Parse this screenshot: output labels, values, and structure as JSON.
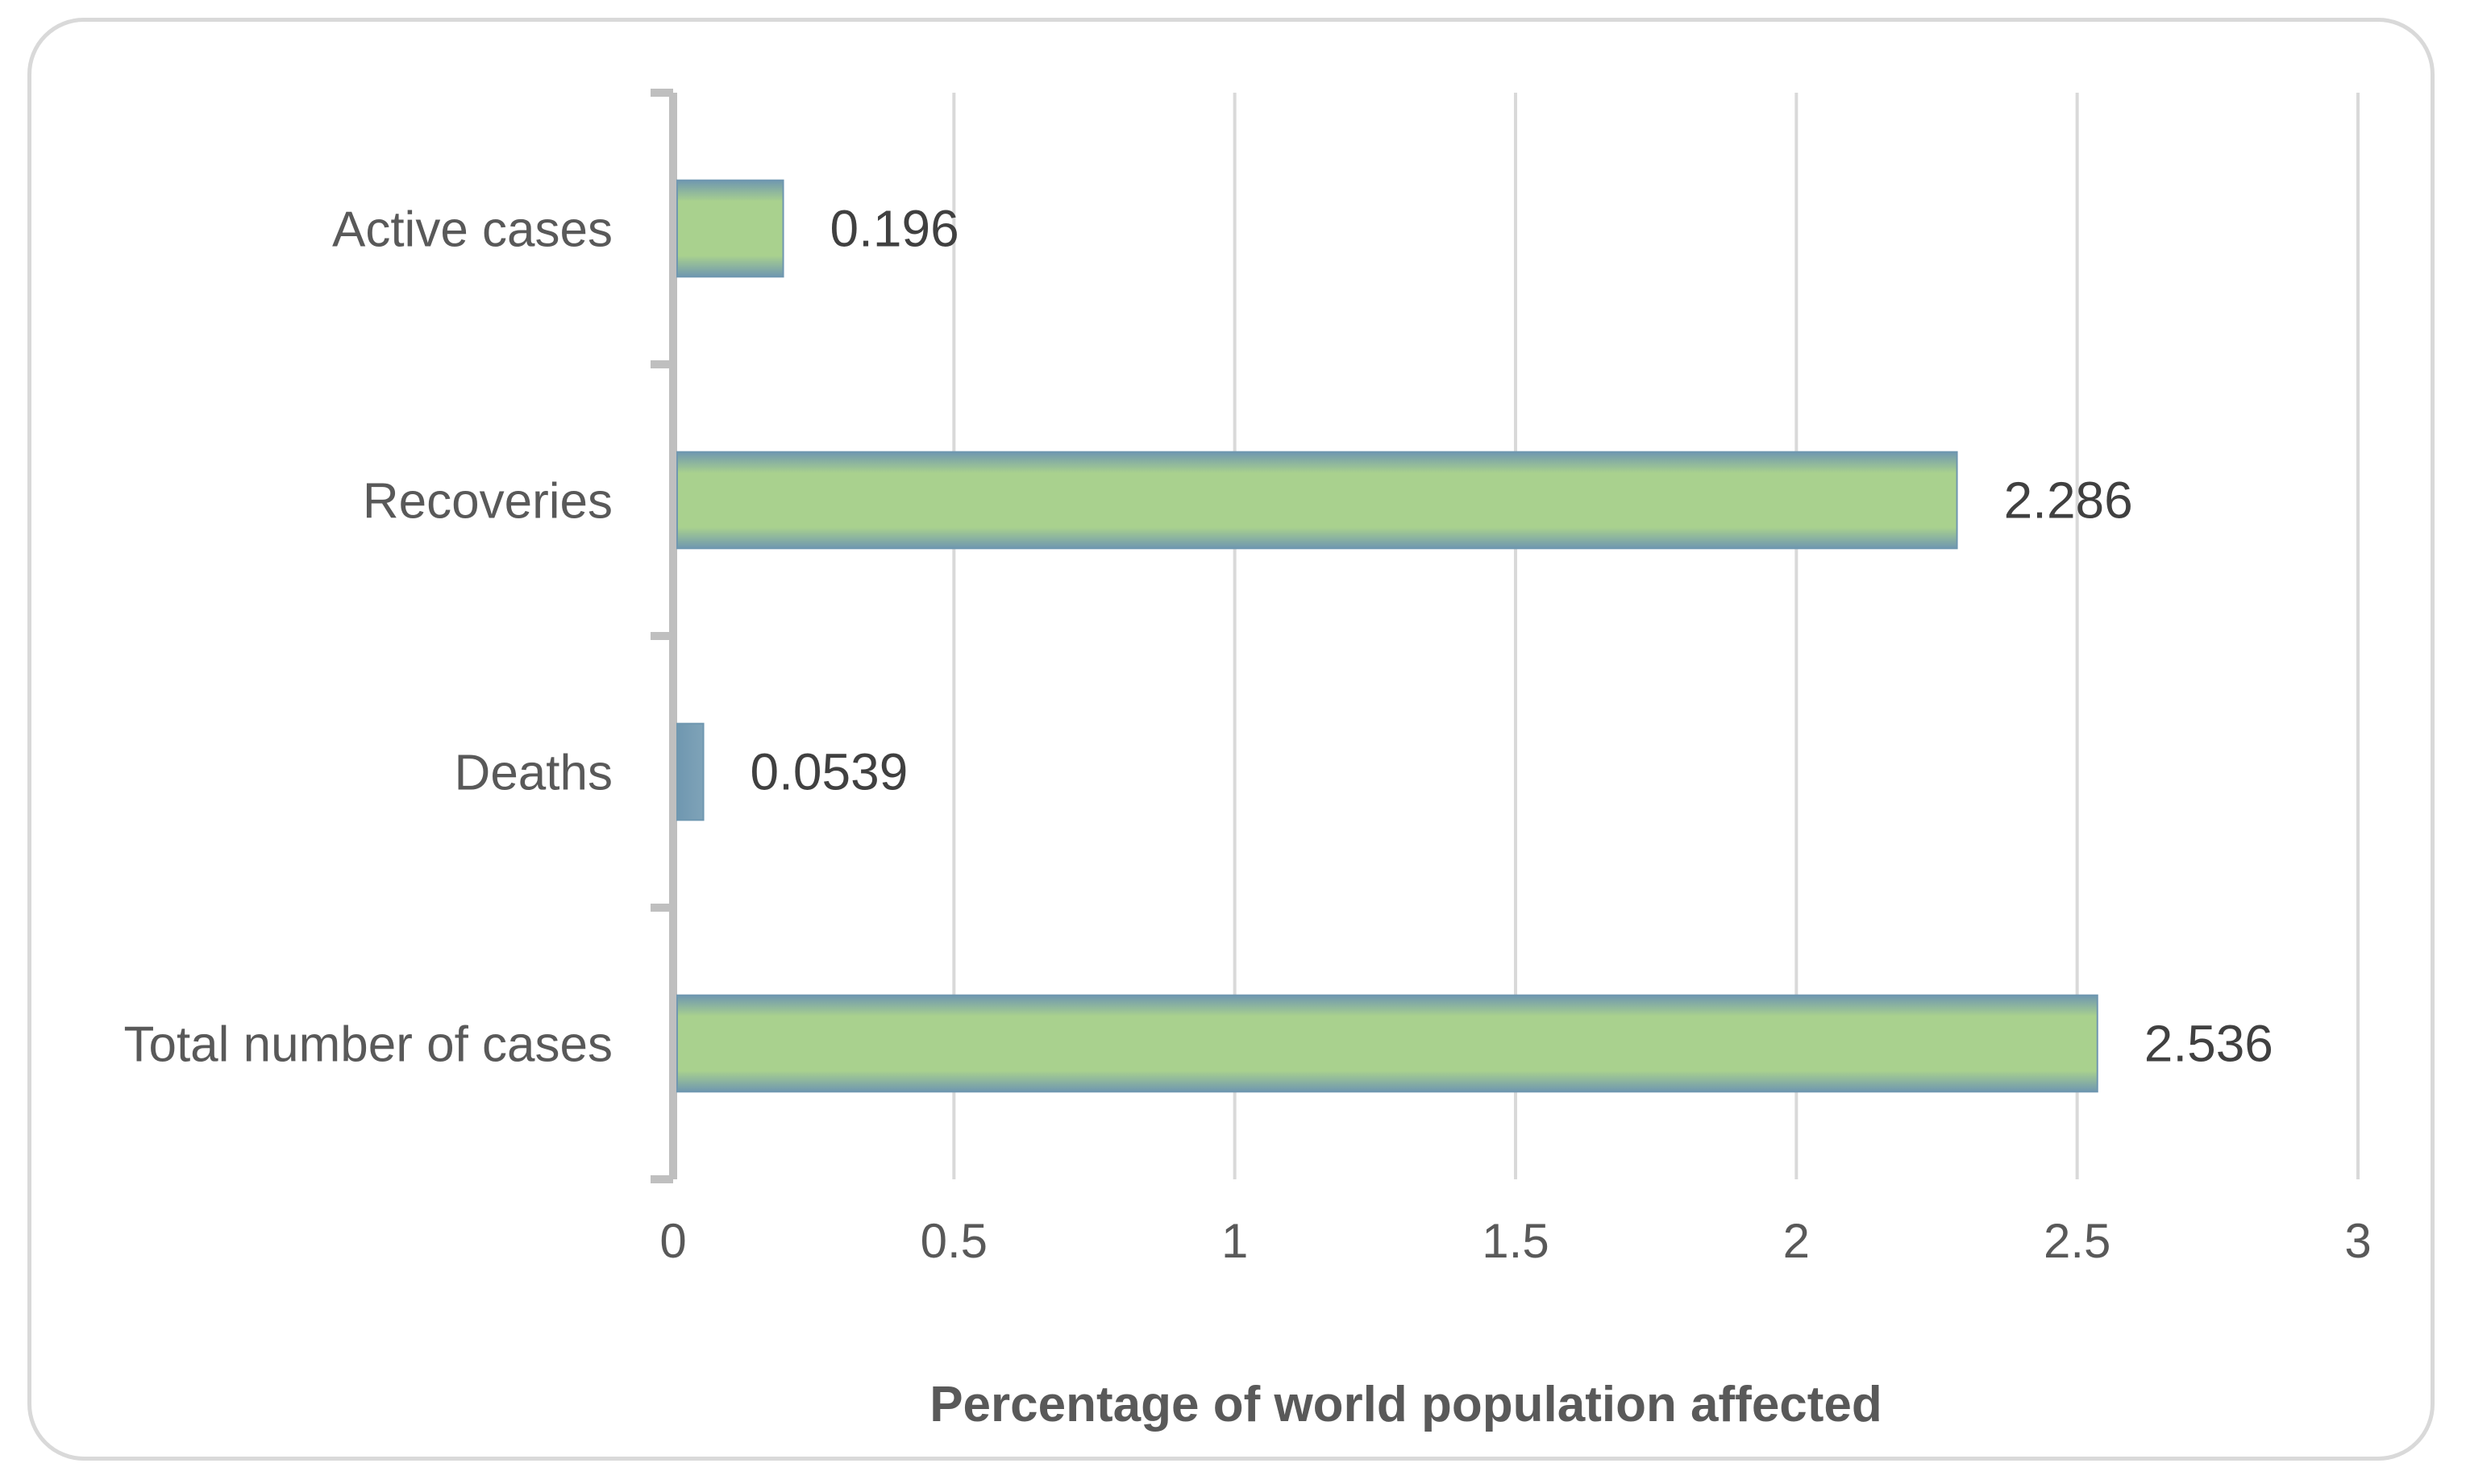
{
  "chart_data": {
    "type": "bar",
    "orientation": "horizontal",
    "categories": [
      "Active cases",
      "Recoveries",
      "Deaths",
      "Total number of cases"
    ],
    "values": [
      0.196,
      2.286,
      0.0539,
      2.536
    ],
    "data_labels": [
      "0.196",
      "2.286",
      "0.0539",
      "2.536"
    ],
    "title": "",
    "xlabel": "Percentage of world population affected",
    "ylabel": "",
    "xlim": [
      0,
      3
    ],
    "xticks": [
      0,
      0.5,
      1,
      1.5,
      2,
      2.5,
      3
    ],
    "xtick_labels": [
      "0",
      "0.5",
      "1",
      "1.5",
      "2",
      "2.5",
      "3"
    ],
    "grid": true,
    "legend": "none",
    "colors": {
      "bar_center": "#a9d18e",
      "bar_edge": "#6f97b0",
      "grid": "#d9d9d9",
      "axis": "#bfbfbf",
      "frame": "#d9d9d9"
    }
  }
}
